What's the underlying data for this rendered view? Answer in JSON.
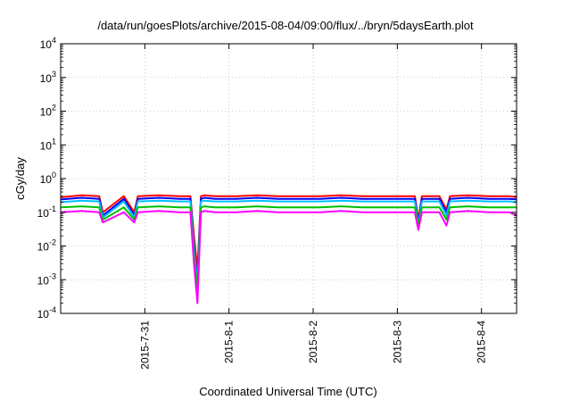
{
  "chart_data": {
    "type": "line",
    "title": "/data/run/goesPlots/archive/2015-08-04/09:00/flux/../bryn/5daysEarth.plot",
    "xlabel": "Coordinated Universal Time (UTC)",
    "ylabel": "cGy/day",
    "yscale": "log",
    "ylim": [
      0.0001,
      10000
    ],
    "xlim": [
      "2015-07-30T00:00",
      "2015-08-04T10:00"
    ],
    "grid": true,
    "y_ticks": [
      {
        "value": 0.0001,
        "base": "10",
        "exp": "-4"
      },
      {
        "value": 0.001,
        "base": "10",
        "exp": "-3"
      },
      {
        "value": 0.01,
        "base": "10",
        "exp": "-2"
      },
      {
        "value": 0.1,
        "base": "10",
        "exp": "-1"
      },
      {
        "value": 1,
        "base": "10",
        "exp": "0"
      },
      {
        "value": 10,
        "base": "10",
        "exp": "1"
      },
      {
        "value": 100,
        "base": "10",
        "exp": "2"
      },
      {
        "value": 1000,
        "base": "10",
        "exp": "3"
      },
      {
        "value": 10000,
        "base": "10",
        "exp": "4"
      }
    ],
    "x_ticks": [
      {
        "value": "2015-07-31T00:00",
        "label": "2015-7-31"
      },
      {
        "value": "2015-08-01T00:00",
        "label": "2015-8-1"
      },
      {
        "value": "2015-08-02T00:00",
        "label": "2015-8-2"
      },
      {
        "value": "2015-08-03T00:00",
        "label": "2015-8-3"
      },
      {
        "value": "2015-08-04T00:00",
        "label": "2015-8-4"
      }
    ],
    "x": [
      "2015-07-30T00:00",
      "2015-07-30T06:00",
      "2015-07-30T11:00",
      "2015-07-30T12:00",
      "2015-07-30T18:00",
      "2015-07-30T21:00",
      "2015-07-30T22:00",
      "2015-07-31T04:00",
      "2015-07-31T10:00",
      "2015-07-31T13:00",
      "2015-07-31T14:00",
      "2015-07-31T15:00",
      "2015-07-31T16:00",
      "2015-07-31T17:00",
      "2015-07-31T20:00",
      "2015-08-01T02:00",
      "2015-08-01T08:00",
      "2015-08-01T14:00",
      "2015-08-01T20:00",
      "2015-08-02T02:00",
      "2015-08-02T08:00",
      "2015-08-02T14:00",
      "2015-08-02T20:00",
      "2015-08-03T02:00",
      "2015-08-03T05:00",
      "2015-08-03T06:00",
      "2015-08-03T07:00",
      "2015-08-03T12:00",
      "2015-08-03T14:00",
      "2015-08-03T15:00",
      "2015-08-03T20:00",
      "2015-08-04T02:00",
      "2015-08-04T08:00",
      "2015-08-04T10:00"
    ],
    "series": [
      {
        "color": "#ff0000",
        "values": [
          0.28,
          0.32,
          0.3,
          0.1,
          0.3,
          0.1,
          0.3,
          0.32,
          0.3,
          0.3,
          0.02,
          0.002,
          0.3,
          0.32,
          0.3,
          0.3,
          0.32,
          0.3,
          0.3,
          0.3,
          0.32,
          0.3,
          0.3,
          0.3,
          0.3,
          0.06,
          0.3,
          0.3,
          0.12,
          0.3,
          0.32,
          0.3,
          0.3,
          0.28
        ]
      },
      {
        "color": "#0000ff",
        "values": [
          0.24,
          0.27,
          0.25,
          0.08,
          0.25,
          0.08,
          0.25,
          0.27,
          0.25,
          0.25,
          0.01,
          0.001,
          0.25,
          0.27,
          0.25,
          0.25,
          0.27,
          0.25,
          0.25,
          0.25,
          0.27,
          0.25,
          0.25,
          0.25,
          0.25,
          0.05,
          0.25,
          0.25,
          0.1,
          0.25,
          0.27,
          0.25,
          0.25,
          0.24
        ]
      },
      {
        "color": "#00c0ff",
        "values": [
          0.2,
          0.22,
          0.21,
          0.07,
          0.21,
          0.07,
          0.21,
          0.22,
          0.21,
          0.21,
          0.008,
          0.0008,
          0.21,
          0.22,
          0.21,
          0.21,
          0.22,
          0.21,
          0.21,
          0.21,
          0.22,
          0.21,
          0.21,
          0.21,
          0.21,
          0.04,
          0.21,
          0.21,
          0.08,
          0.21,
          0.22,
          0.21,
          0.21,
          0.2
        ]
      },
      {
        "color": "#00c000",
        "values": [
          0.14,
          0.15,
          0.14,
          0.06,
          0.14,
          0.06,
          0.14,
          0.15,
          0.14,
          0.14,
          0.005,
          0.0006,
          0.14,
          0.15,
          0.14,
          0.14,
          0.15,
          0.14,
          0.14,
          0.14,
          0.15,
          0.14,
          0.14,
          0.14,
          0.14,
          0.04,
          0.14,
          0.14,
          0.06,
          0.14,
          0.15,
          0.14,
          0.14,
          0.14
        ]
      },
      {
        "color": "#ff00ff",
        "values": [
          0.1,
          0.11,
          0.1,
          0.05,
          0.1,
          0.05,
          0.1,
          0.11,
          0.1,
          0.1,
          0.003,
          0.0002,
          0.1,
          0.11,
          0.1,
          0.1,
          0.11,
          0.1,
          0.1,
          0.1,
          0.11,
          0.1,
          0.1,
          0.1,
          0.1,
          0.03,
          0.1,
          0.1,
          0.04,
          0.1,
          0.11,
          0.1,
          0.1,
          0.08
        ]
      }
    ]
  }
}
